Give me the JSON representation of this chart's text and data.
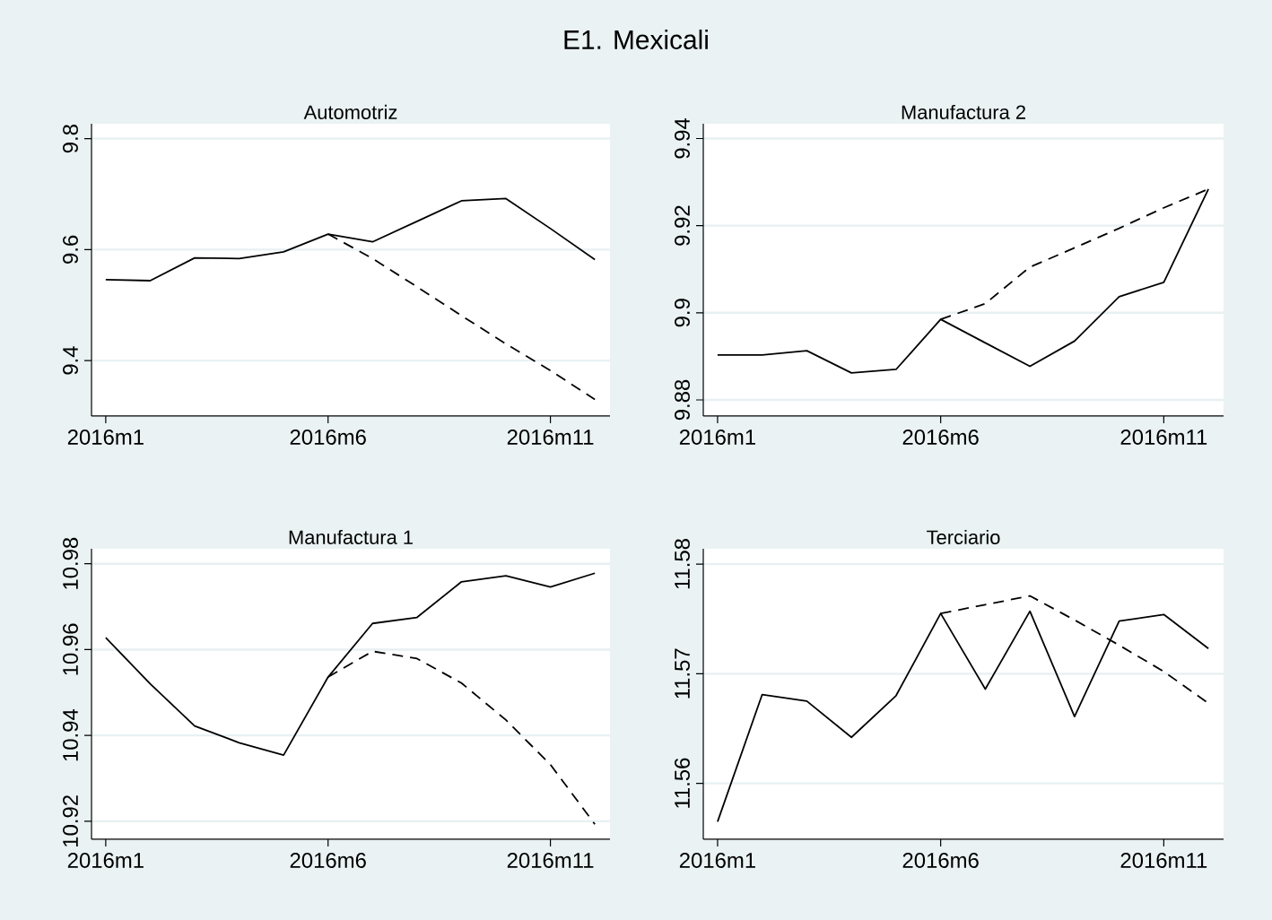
{
  "chart_data": [
    {
      "type": "line",
      "title": "Automotriz",
      "annotations": [
        "E1. Mexicali"
      ],
      "categories": [
        "2016m1",
        null,
        null,
        null,
        null,
        "2016m6",
        null,
        null,
        null,
        null,
        "2016m11",
        null
      ],
      "ylim": [
        9.3,
        9.827
      ],
      "yticks": [
        9.4,
        9.6,
        9.8
      ],
      "grid": "y",
      "series": [
        {
          "color": "#000000",
          "line_style": "solid",
          "values": [
            9.546,
            9.544,
            9.585,
            9.584,
            9.596,
            9.628,
            9.614,
            9.651,
            9.688,
            9.692,
            9.638,
            9.582
          ]
        },
        {
          "color": "#000000",
          "line_style": "dashed",
          "values": [
            null,
            null,
            null,
            null,
            null,
            9.628,
            9.584,
            9.533,
            9.481,
            9.43,
            9.382,
            9.33
          ]
        }
      ]
    },
    {
      "type": "line",
      "title": "Manufactura 2",
      "categories": [
        "2016m1",
        null,
        null,
        null,
        null,
        "2016m6",
        null,
        null,
        null,
        null,
        "2016m11",
        null
      ],
      "ylim": [
        9.8763,
        9.9434
      ],
      "yticks": [
        9.88,
        9.9,
        9.92,
        9.94
      ],
      "grid": "y",
      "series": [
        {
          "color": "#000000",
          "line_style": "solid",
          "values": [
            9.8903,
            9.8903,
            9.8913,
            9.8862,
            9.887,
            9.8985,
            9.8931,
            9.8877,
            9.8935,
            9.9037,
            9.907,
            9.9284
          ]
        },
        {
          "color": "#000000",
          "line_style": "dashed",
          "values": [
            null,
            null,
            null,
            null,
            null,
            9.8985,
            9.9021,
            9.9105,
            9.9149,
            9.9194,
            9.9241,
            9.9284
          ]
        }
      ]
    },
    {
      "type": "line",
      "title": "Manufactura 1",
      "categories": [
        "2016m1",
        null,
        null,
        null,
        null,
        "2016m6",
        null,
        null,
        null,
        null,
        "2016m11",
        null
      ],
      "ylim": [
        10.9158,
        10.9835
      ],
      "yticks": [
        10.92,
        10.94,
        10.96,
        10.98
      ],
      "grid": "y",
      "series": [
        {
          "color": "#000000",
          "line_style": "solid",
          "values": [
            10.9628,
            10.952,
            10.9422,
            10.9383,
            10.9354,
            10.9536,
            10.9661,
            10.9675,
            10.9758,
            10.9772,
            10.9746,
            10.9778
          ]
        },
        {
          "color": "#000000",
          "line_style": "dashed",
          "values": [
            null,
            null,
            null,
            null,
            null,
            10.9536,
            10.9596,
            10.9579,
            10.9522,
            10.9436,
            10.9332,
            10.9193
          ]
        }
      ]
    },
    {
      "type": "line",
      "title": "Terciario",
      "categories": [
        "2016m1",
        null,
        null,
        null,
        null,
        "2016m6",
        null,
        null,
        null,
        null,
        "2016m11",
        null
      ],
      "ylim": [
        11.5549,
        11.5814
      ],
      "yticks": [
        11.56,
        11.57,
        11.58
      ],
      "grid": "y",
      "series": [
        {
          "color": "#000000",
          "line_style": "solid",
          "values": [
            11.5565,
            11.5681,
            11.5675,
            11.5642,
            11.568,
            11.5755,
            11.5686,
            11.5757,
            11.5661,
            11.5748,
            11.5754,
            11.5723
          ]
        },
        {
          "color": "#000000",
          "line_style": "dashed",
          "values": [
            null,
            null,
            null,
            null,
            null,
            11.5755,
            11.5763,
            11.5771,
            11.5749,
            11.5726,
            11.5702,
            11.5673
          ]
        }
      ]
    }
  ]
}
